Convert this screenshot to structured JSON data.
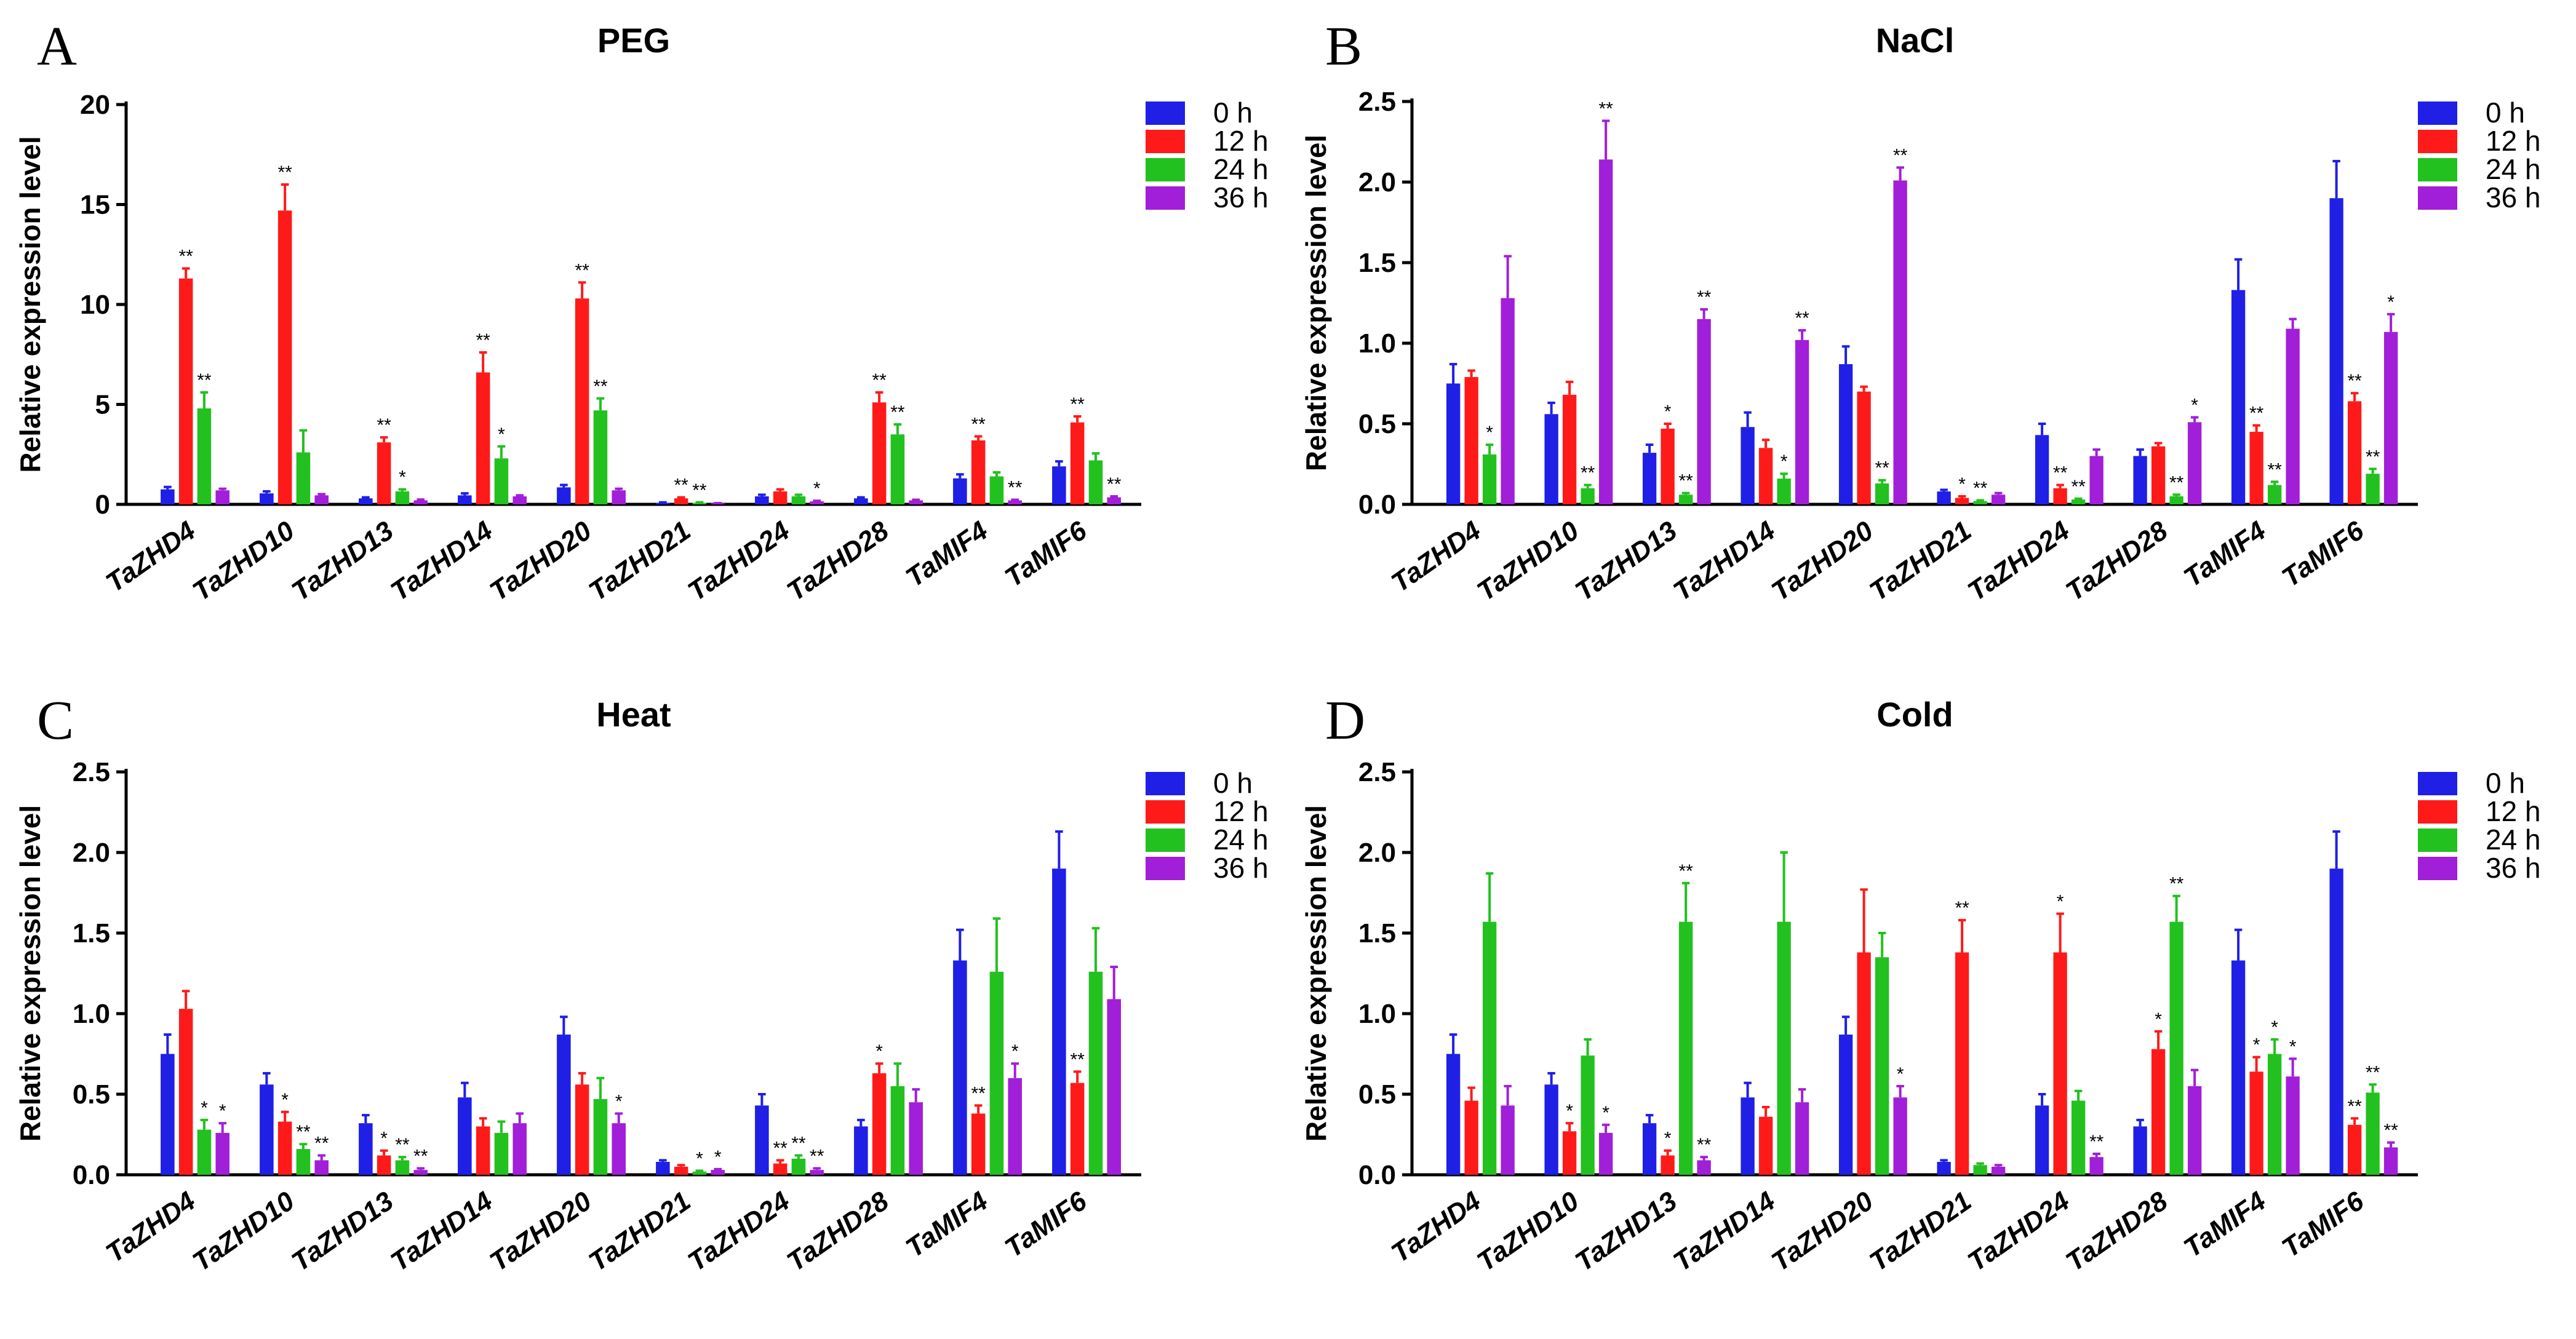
{
  "genes": [
    "TaZHD4",
    "TaZHD10",
    "TaZHD13",
    "TaZHD14",
    "TaZHD20",
    "TaZHD21",
    "TaZHD24",
    "TaZHD28",
    "TaMIF4",
    "TaMIF6"
  ],
  "legend": [
    "0 h",
    "12 h",
    "24 h",
    "36 h"
  ],
  "colors": {
    "0 h": "#1f1fe6",
    "12 h": "#ff1a1a",
    "24 h": "#22c11f",
    "36 h": "#a11fd8"
  },
  "ylabel": "Relative expression level",
  "chart_data": [
    {
      "panel": "A",
      "title": "PEG",
      "type": "bar",
      "ylabel": "Relative expression level",
      "ylim": [
        0,
        20
      ],
      "yticks": [
        "0",
        "5",
        "10",
        "15",
        "20"
      ],
      "categories": [
        "TaZHD4",
        "TaZHD10",
        "TaZHD13",
        "TaZHD14",
        "TaZHD20",
        "TaZHD21",
        "TaZHD24",
        "TaZHD28",
        "TaMIF4",
        "TaMIF6"
      ],
      "series": [
        {
          "name": "0 h",
          "values": [
            0.75,
            0.55,
            0.3,
            0.45,
            0.85,
            0.08,
            0.4,
            0.3,
            1.3,
            1.9
          ],
          "errors": [
            0.12,
            0.1,
            0.05,
            0.1,
            0.12,
            0.02,
            0.08,
            0.05,
            0.2,
            0.25
          ],
          "sig": [
            "",
            "",
            "",
            "",
            "",
            "",
            "",
            "",
            "",
            ""
          ]
        },
        {
          "name": "12 h",
          "values": [
            11.3,
            14.7,
            3.1,
            6.6,
            10.3,
            0.3,
            0.65,
            5.1,
            3.2,
            4.1
          ],
          "errors": [
            0.5,
            1.3,
            0.25,
            1.0,
            0.8,
            0.05,
            0.1,
            0.5,
            0.2,
            0.3
          ],
          "sig": [
            "**",
            "**",
            "**",
            "**",
            "**",
            "**",
            "",
            "**",
            "**",
            "**"
          ]
        },
        {
          "name": "24 h",
          "values": [
            4.8,
            2.6,
            0.65,
            2.3,
            4.7,
            0.08,
            0.4,
            3.5,
            1.4,
            2.2
          ],
          "errors": [
            0.8,
            1.1,
            0.1,
            0.6,
            0.6,
            0.02,
            0.08,
            0.5,
            0.2,
            0.35
          ],
          "sig": [
            "**",
            "",
            "*",
            "*",
            "**",
            "**",
            "",
            "**",
            "",
            ""
          ]
        },
        {
          "name": "36 h",
          "values": [
            0.7,
            0.45,
            0.2,
            0.4,
            0.7,
            0.05,
            0.15,
            0.2,
            0.2,
            0.35
          ],
          "errors": [
            0.08,
            0.06,
            0.04,
            0.05,
            0.08,
            0.01,
            0.03,
            0.03,
            0.03,
            0.05
          ],
          "sig": [
            "",
            "",
            "",
            "",
            "",
            "",
            "*",
            "",
            "**",
            "**"
          ]
        }
      ]
    },
    {
      "panel": "B",
      "title": "NaCl",
      "type": "bar",
      "ylabel": "Relative expression level",
      "ylim": [
        0,
        2.5
      ],
      "yticks": [
        "0.0",
        "0.5",
        "1.0",
        "1.5",
        "2.0",
        "2.5"
      ],
      "categories": [
        "TaZHD4",
        "TaZHD10",
        "TaZHD13",
        "TaZHD14",
        "TaZHD20",
        "TaZHD21",
        "TaZHD24",
        "TaZHD28",
        "TaMIF4",
        "TaMIF6"
      ],
      "series": [
        {
          "name": "0 h",
          "values": [
            0.75,
            0.56,
            0.32,
            0.48,
            0.87,
            0.08,
            0.43,
            0.3,
            1.33,
            1.9
          ],
          "errors": [
            0.12,
            0.07,
            0.05,
            0.09,
            0.11,
            0.01,
            0.07,
            0.04,
            0.19,
            0.23
          ],
          "sig": [
            "",
            "",
            "",
            "",
            "",
            "",
            "",
            "",
            "",
            ""
          ]
        },
        {
          "name": "12 h",
          "values": [
            0.79,
            0.68,
            0.47,
            0.35,
            0.7,
            0.04,
            0.1,
            0.36,
            0.45,
            0.64
          ],
          "errors": [
            0.04,
            0.08,
            0.03,
            0.05,
            0.03,
            0.01,
            0.02,
            0.02,
            0.04,
            0.05
          ],
          "sig": [
            "",
            "",
            "*",
            "",
            "",
            "*",
            "**",
            "",
            "**",
            "**"
          ]
        },
        {
          "name": "24 h",
          "values": [
            0.31,
            0.1,
            0.06,
            0.16,
            0.13,
            0.02,
            0.03,
            0.05,
            0.12,
            0.19
          ],
          "errors": [
            0.06,
            0.02,
            0.01,
            0.03,
            0.02,
            0.005,
            0.005,
            0.01,
            0.02,
            0.03
          ],
          "sig": [
            "*",
            "**",
            "**",
            "*",
            "**",
            "**",
            "**",
            "**",
            "**",
            "**"
          ]
        },
        {
          "name": "36 h",
          "values": [
            1.28,
            2.14,
            1.15,
            1.02,
            2.01,
            0.06,
            0.3,
            0.51,
            1.09,
            1.07
          ],
          "errors": [
            0.26,
            0.24,
            0.06,
            0.06,
            0.08,
            0.01,
            0.04,
            0.03,
            0.06,
            0.11
          ],
          "sig": [
            "",
            "**",
            "**",
            "**",
            "**",
            "",
            "",
            "*",
            "",
            "*"
          ]
        }
      ]
    },
    {
      "panel": "C",
      "title": "Heat",
      "type": "bar",
      "ylabel": "Relative expression level",
      "ylim": [
        0,
        2.5
      ],
      "yticks": [
        "0.0",
        "0.5",
        "1.0",
        "1.5",
        "2.0",
        "2.5"
      ],
      "categories": [
        "TaZHD4",
        "TaZHD10",
        "TaZHD13",
        "TaZHD14",
        "TaZHD20",
        "TaZHD21",
        "TaZHD24",
        "TaZHD28",
        "TaMIF4",
        "TaMIF6"
      ],
      "series": [
        {
          "name": "0 h",
          "values": [
            0.75,
            0.56,
            0.32,
            0.48,
            0.87,
            0.08,
            0.43,
            0.3,
            1.33,
            1.9
          ],
          "errors": [
            0.12,
            0.07,
            0.05,
            0.09,
            0.11,
            0.01,
            0.07,
            0.04,
            0.19,
            0.23
          ],
          "sig": [
            "",
            "",
            "",
            "",
            "",
            "",
            "",
            "",
            "",
            ""
          ]
        },
        {
          "name": "12 h",
          "values": [
            1.03,
            0.33,
            0.12,
            0.3,
            0.56,
            0.05,
            0.07,
            0.63,
            0.38,
            0.57
          ],
          "errors": [
            0.11,
            0.06,
            0.03,
            0.05,
            0.07,
            0.01,
            0.02,
            0.06,
            0.05,
            0.07
          ],
          "sig": [
            "",
            "*",
            "*",
            "",
            "",
            "",
            "**",
            "*",
            "**",
            "**"
          ]
        },
        {
          "name": "24 h",
          "values": [
            0.28,
            0.16,
            0.09,
            0.26,
            0.47,
            0.02,
            0.1,
            0.55,
            1.26,
            1.26
          ],
          "errors": [
            0.06,
            0.03,
            0.02,
            0.07,
            0.13,
            0.005,
            0.02,
            0.14,
            0.33,
            0.27
          ],
          "sig": [
            "*",
            "**",
            "**",
            "",
            "",
            "*",
            "**",
            "",
            "",
            ""
          ]
        },
        {
          "name": "36 h",
          "values": [
            0.26,
            0.09,
            0.03,
            0.32,
            0.32,
            0.03,
            0.03,
            0.45,
            0.6,
            1.09
          ],
          "errors": [
            0.06,
            0.03,
            0.01,
            0.06,
            0.06,
            0.005,
            0.01,
            0.08,
            0.09,
            0.2
          ],
          "sig": [
            "*",
            "**",
            "**",
            "",
            "*",
            "*",
            "**",
            "",
            "*",
            ""
          ]
        }
      ]
    },
    {
      "panel": "D",
      "title": "Cold",
      "type": "bar",
      "ylabel": "Relative expression level",
      "ylim": [
        0,
        2.5
      ],
      "yticks": [
        "0.0",
        "0.5",
        "1.0",
        "1.5",
        "2.0",
        "2.5"
      ],
      "categories": [
        "TaZHD4",
        "TaZHD10",
        "TaZHD13",
        "TaZHD14",
        "TaZHD20",
        "TaZHD21",
        "TaZHD24",
        "TaZHD28",
        "TaMIF4",
        "TaMIF6"
      ],
      "series": [
        {
          "name": "0 h",
          "values": [
            0.75,
            0.56,
            0.32,
            0.48,
            0.87,
            0.08,
            0.43,
            0.3,
            1.33,
            1.9
          ],
          "errors": [
            0.12,
            0.07,
            0.05,
            0.09,
            0.11,
            0.01,
            0.07,
            0.04,
            0.19,
            0.23
          ],
          "sig": [
            "",
            "",
            "",
            "",
            "",
            "",
            "",
            "",
            "",
            ""
          ]
        },
        {
          "name": "12 h",
          "values": [
            0.46,
            0.27,
            0.12,
            0.36,
            1.38,
            1.38,
            1.38,
            0.78,
            0.64,
            0.31
          ],
          "errors": [
            0.08,
            0.05,
            0.03,
            0.06,
            0.39,
            0.2,
            0.24,
            0.11,
            0.09,
            0.04
          ],
          "sig": [
            "",
            "*",
            "*",
            "",
            "",
            "**",
            "*",
            "*",
            "*",
            "**"
          ]
        },
        {
          "name": "24 h",
          "values": [
            1.57,
            0.74,
            1.57,
            1.57,
            1.35,
            0.06,
            0.46,
            1.57,
            0.75,
            0.51
          ],
          "errors": [
            0.3,
            0.1,
            0.24,
            0.43,
            0.15,
            0.01,
            0.06,
            0.16,
            0.09,
            0.05
          ],
          "sig": [
            "",
            "",
            "**",
            "",
            "",
            "",
            "",
            "**",
            "*",
            "**"
          ]
        },
        {
          "name": "36 h",
          "values": [
            0.43,
            0.26,
            0.09,
            0.45,
            0.48,
            0.05,
            0.11,
            0.55,
            0.61,
            0.17
          ],
          "errors": [
            0.12,
            0.05,
            0.02,
            0.08,
            0.07,
            0.01,
            0.02,
            0.1,
            0.11,
            0.03
          ],
          "sig": [
            "",
            "*",
            "**",
            "",
            "*",
            "",
            "**",
            "",
            "*",
            "**"
          ]
        }
      ]
    }
  ]
}
